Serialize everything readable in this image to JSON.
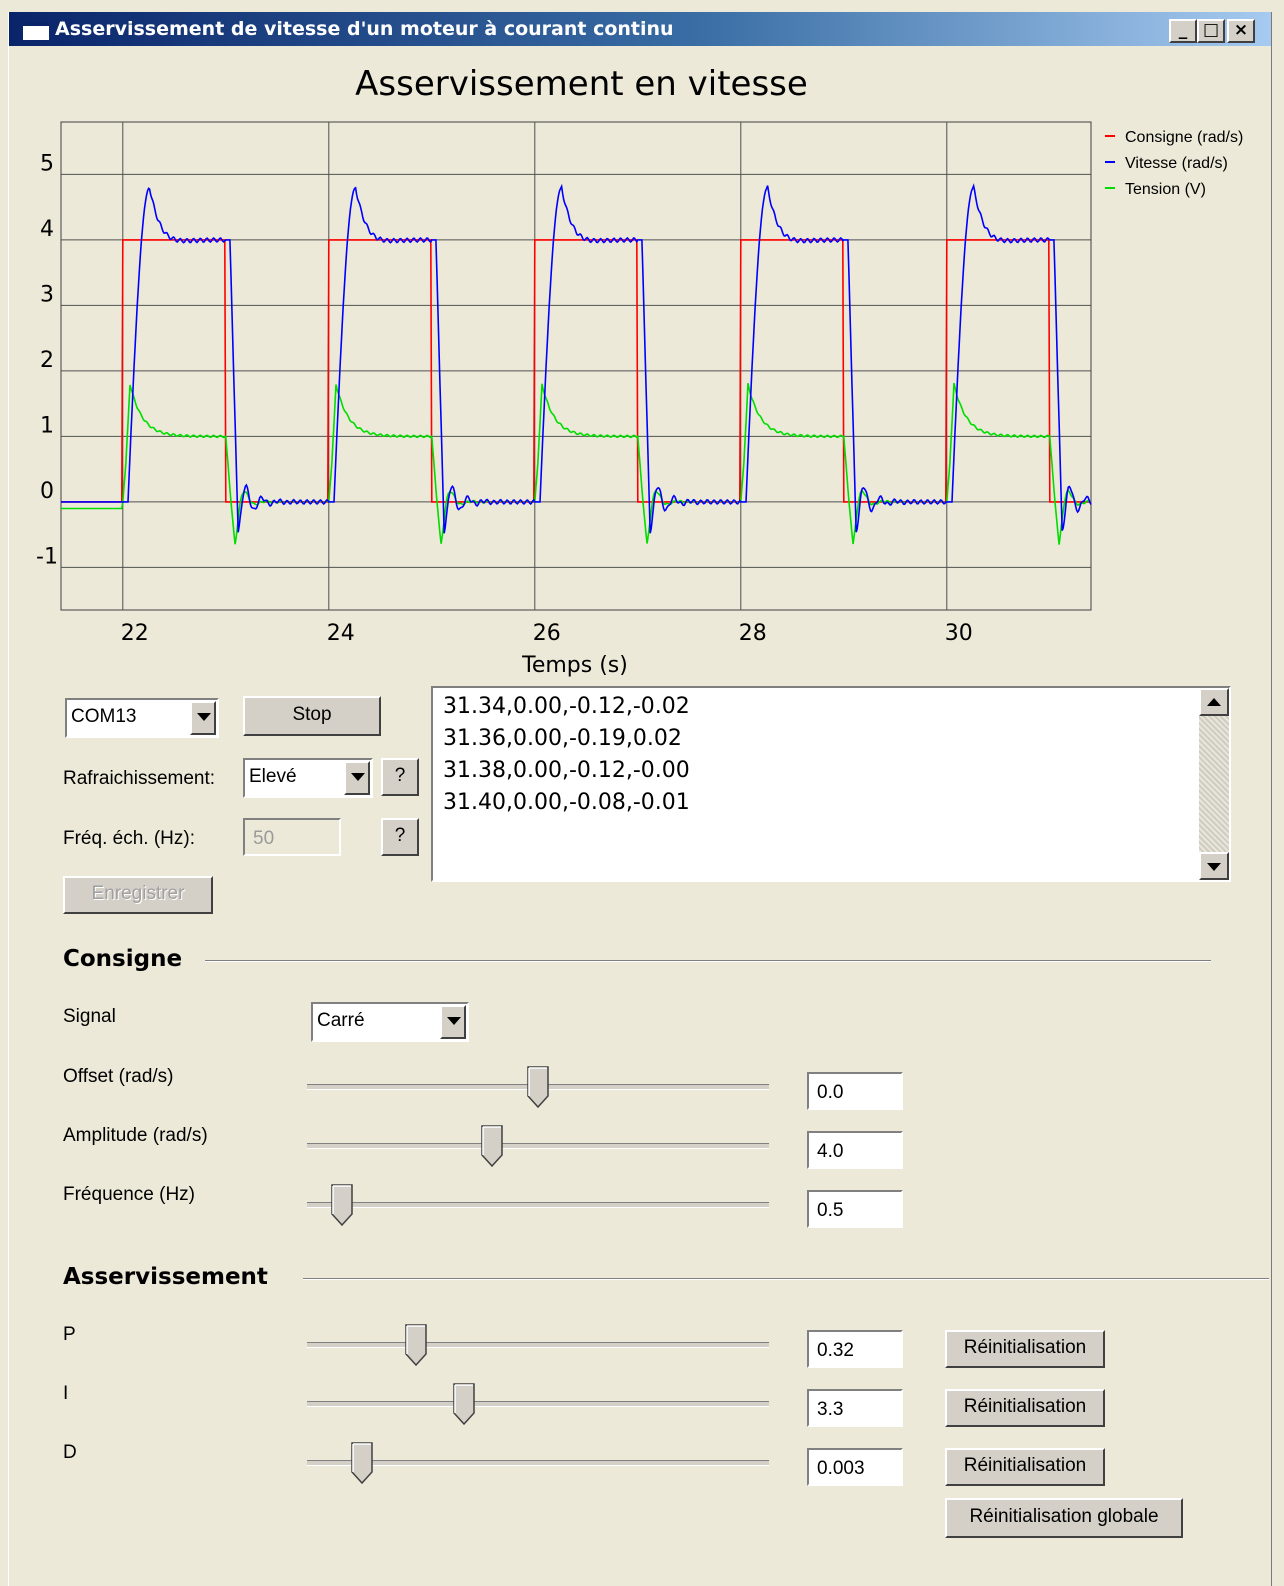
{
  "window": {
    "title": "Asservissement de vitesse d'un moteur à courant continu"
  },
  "chart_data": {
    "type": "line",
    "title": "Asservissement en vitesse",
    "xlabel": "Temps (s)",
    "ylabel": "",
    "xlim": [
      21.4,
      31.4
    ],
    "ylim": [
      -1.65,
      5.8
    ],
    "xticks": [
      22,
      24,
      26,
      28,
      30
    ],
    "yticks": [
      -1,
      0,
      1,
      2,
      3,
      4,
      5
    ],
    "grid": true,
    "legend_position": "top-right",
    "square_period": 2,
    "pulse_start": 22,
    "pulse_width": 1,
    "series": [
      {
        "name": "Consigne (rad/s)",
        "color": "#ff0000",
        "amplitude": 4.0,
        "offset": 0.0
      },
      {
        "name": "Vitesse (rad/s)",
        "color": "#0000ff",
        "peak": 4.8,
        "steady_high": 4.0,
        "undershoot": -0.45
      },
      {
        "name": "Tension (V)",
        "color": "#00dd00",
        "initial": -0.1,
        "peak": 1.8,
        "steady_high": 1.0,
        "undershoot": -0.65
      }
    ]
  },
  "controls": {
    "port": "COM13",
    "stop_label": "Stop",
    "refresh_label": "Rafraichissement:",
    "refresh_value": "Elevé",
    "help_label": "?",
    "freq_label": "Fréq. éch. (Hz):",
    "freq_value": "50",
    "record_label": "Enregistrer"
  },
  "log": {
    "lines": [
      "31.34,0.00,-0.12,-0.02",
      "31.36,0.00,-0.19,0.02",
      "31.38,0.00,-0.12,-0.00",
      "31.40,0.00,-0.08,-0.01"
    ]
  },
  "consigne": {
    "heading": "Consigne",
    "signal_label": "Signal",
    "signal_value": "Carré",
    "rows": [
      {
        "label": "Offset (rad/s)",
        "value": "0.0",
        "slider": 0.5
      },
      {
        "label": "Amplitude (rad/s)",
        "value": "4.0",
        "slider": 0.4
      },
      {
        "label": "Fréquence (Hz)",
        "value": "0.5",
        "slider": 0.075
      }
    ]
  },
  "asservissement": {
    "heading": "Asservissement",
    "rows": [
      {
        "label": "P",
        "value": "0.32",
        "slider": 0.235
      },
      {
        "label": "I",
        "value": "3.3",
        "slider": 0.34
      },
      {
        "label": "D",
        "value": "0.003",
        "slider": 0.12
      }
    ],
    "reset_label": "Réinitialisation",
    "global_reset_label": "Réinitialisation globale"
  }
}
